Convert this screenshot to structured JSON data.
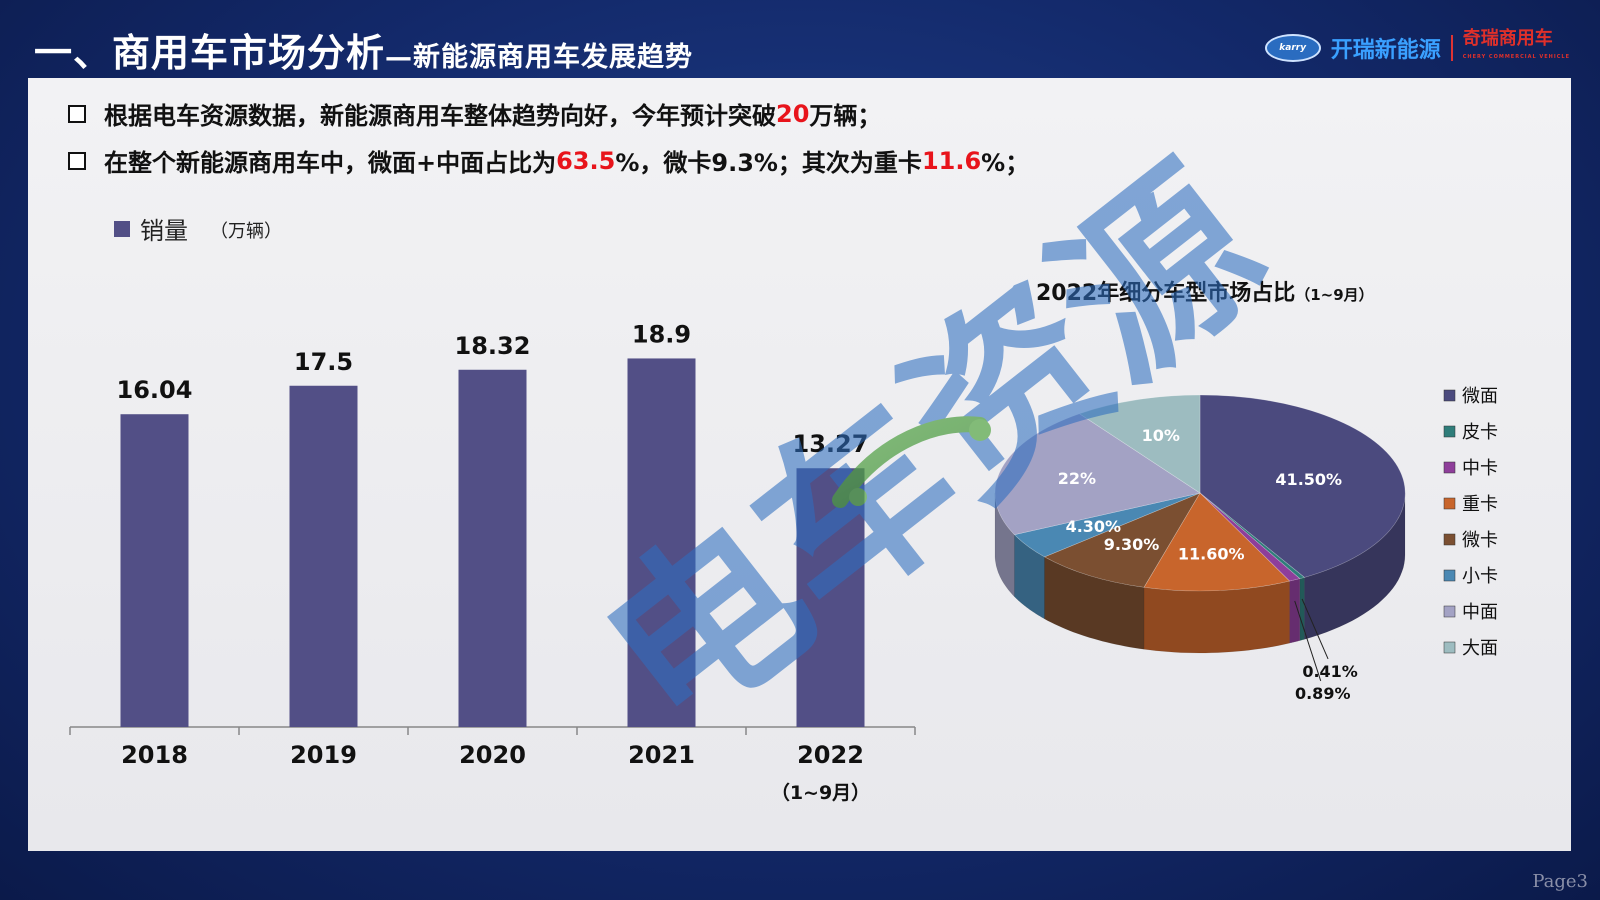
{
  "header": {
    "title": "一、商用车市场分析",
    "subtitle": "—新能源商用车发展趋势",
    "logo_badge": "karry",
    "logo_brand": "开瑞新能源",
    "logo_red": "奇瑞商用车",
    "logo_red_small": "CHERY COMMERCIAL VEHICLE"
  },
  "bullets": [
    {
      "pre": "根据电车资源数据，新能源商用车整体趋势向好，今年预计突破",
      "hl": "20",
      "post": "万辆；"
    },
    {
      "pre": "在整个新能源商用车中，微面+中面占比为",
      "hl": "63.5",
      "mid": "%，微卡9.3%；其次为重卡",
      "hl2": "11.6",
      "post": "%；"
    }
  ],
  "watermark": "电车资源",
  "page_number": "Page3",
  "chart_data": [
    {
      "type": "bar",
      "legend": "销量",
      "unit": "（万辆）",
      "categories": [
        "2018",
        "2019",
        "2020",
        "2021",
        "2022"
      ],
      "category_note": "（1~9月）",
      "values": [
        16.04,
        17.5,
        18.32,
        18.9,
        13.27
      ],
      "value_labels": [
        "16.04",
        "17.5",
        "18.32",
        "18.9",
        "13.27"
      ],
      "ylim": [
        0,
        20
      ],
      "color": "#524f86"
    },
    {
      "type": "pie",
      "title": "2022年细分车型市场占比",
      "title_note": "（1~9月）",
      "labels": [
        "微面",
        "皮卡",
        "中卡",
        "重卡",
        "微卡",
        "小卡",
        "中面",
        "大面"
      ],
      "values": [
        41.5,
        0.41,
        0.89,
        11.6,
        9.3,
        4.3,
        22,
        10
      ],
      "value_labels": [
        "41.50%",
        "0.41%",
        "0.89%",
        "11.60%",
        "9.30%",
        "4.30%",
        "22%",
        "10%"
      ],
      "colors": [
        "#4b4a7e",
        "#2f7d7a",
        "#8e3e9a",
        "#c8652c",
        "#7b4f31",
        "#4a88b3",
        "#a3a2c4",
        "#9dbcc0"
      ]
    }
  ]
}
